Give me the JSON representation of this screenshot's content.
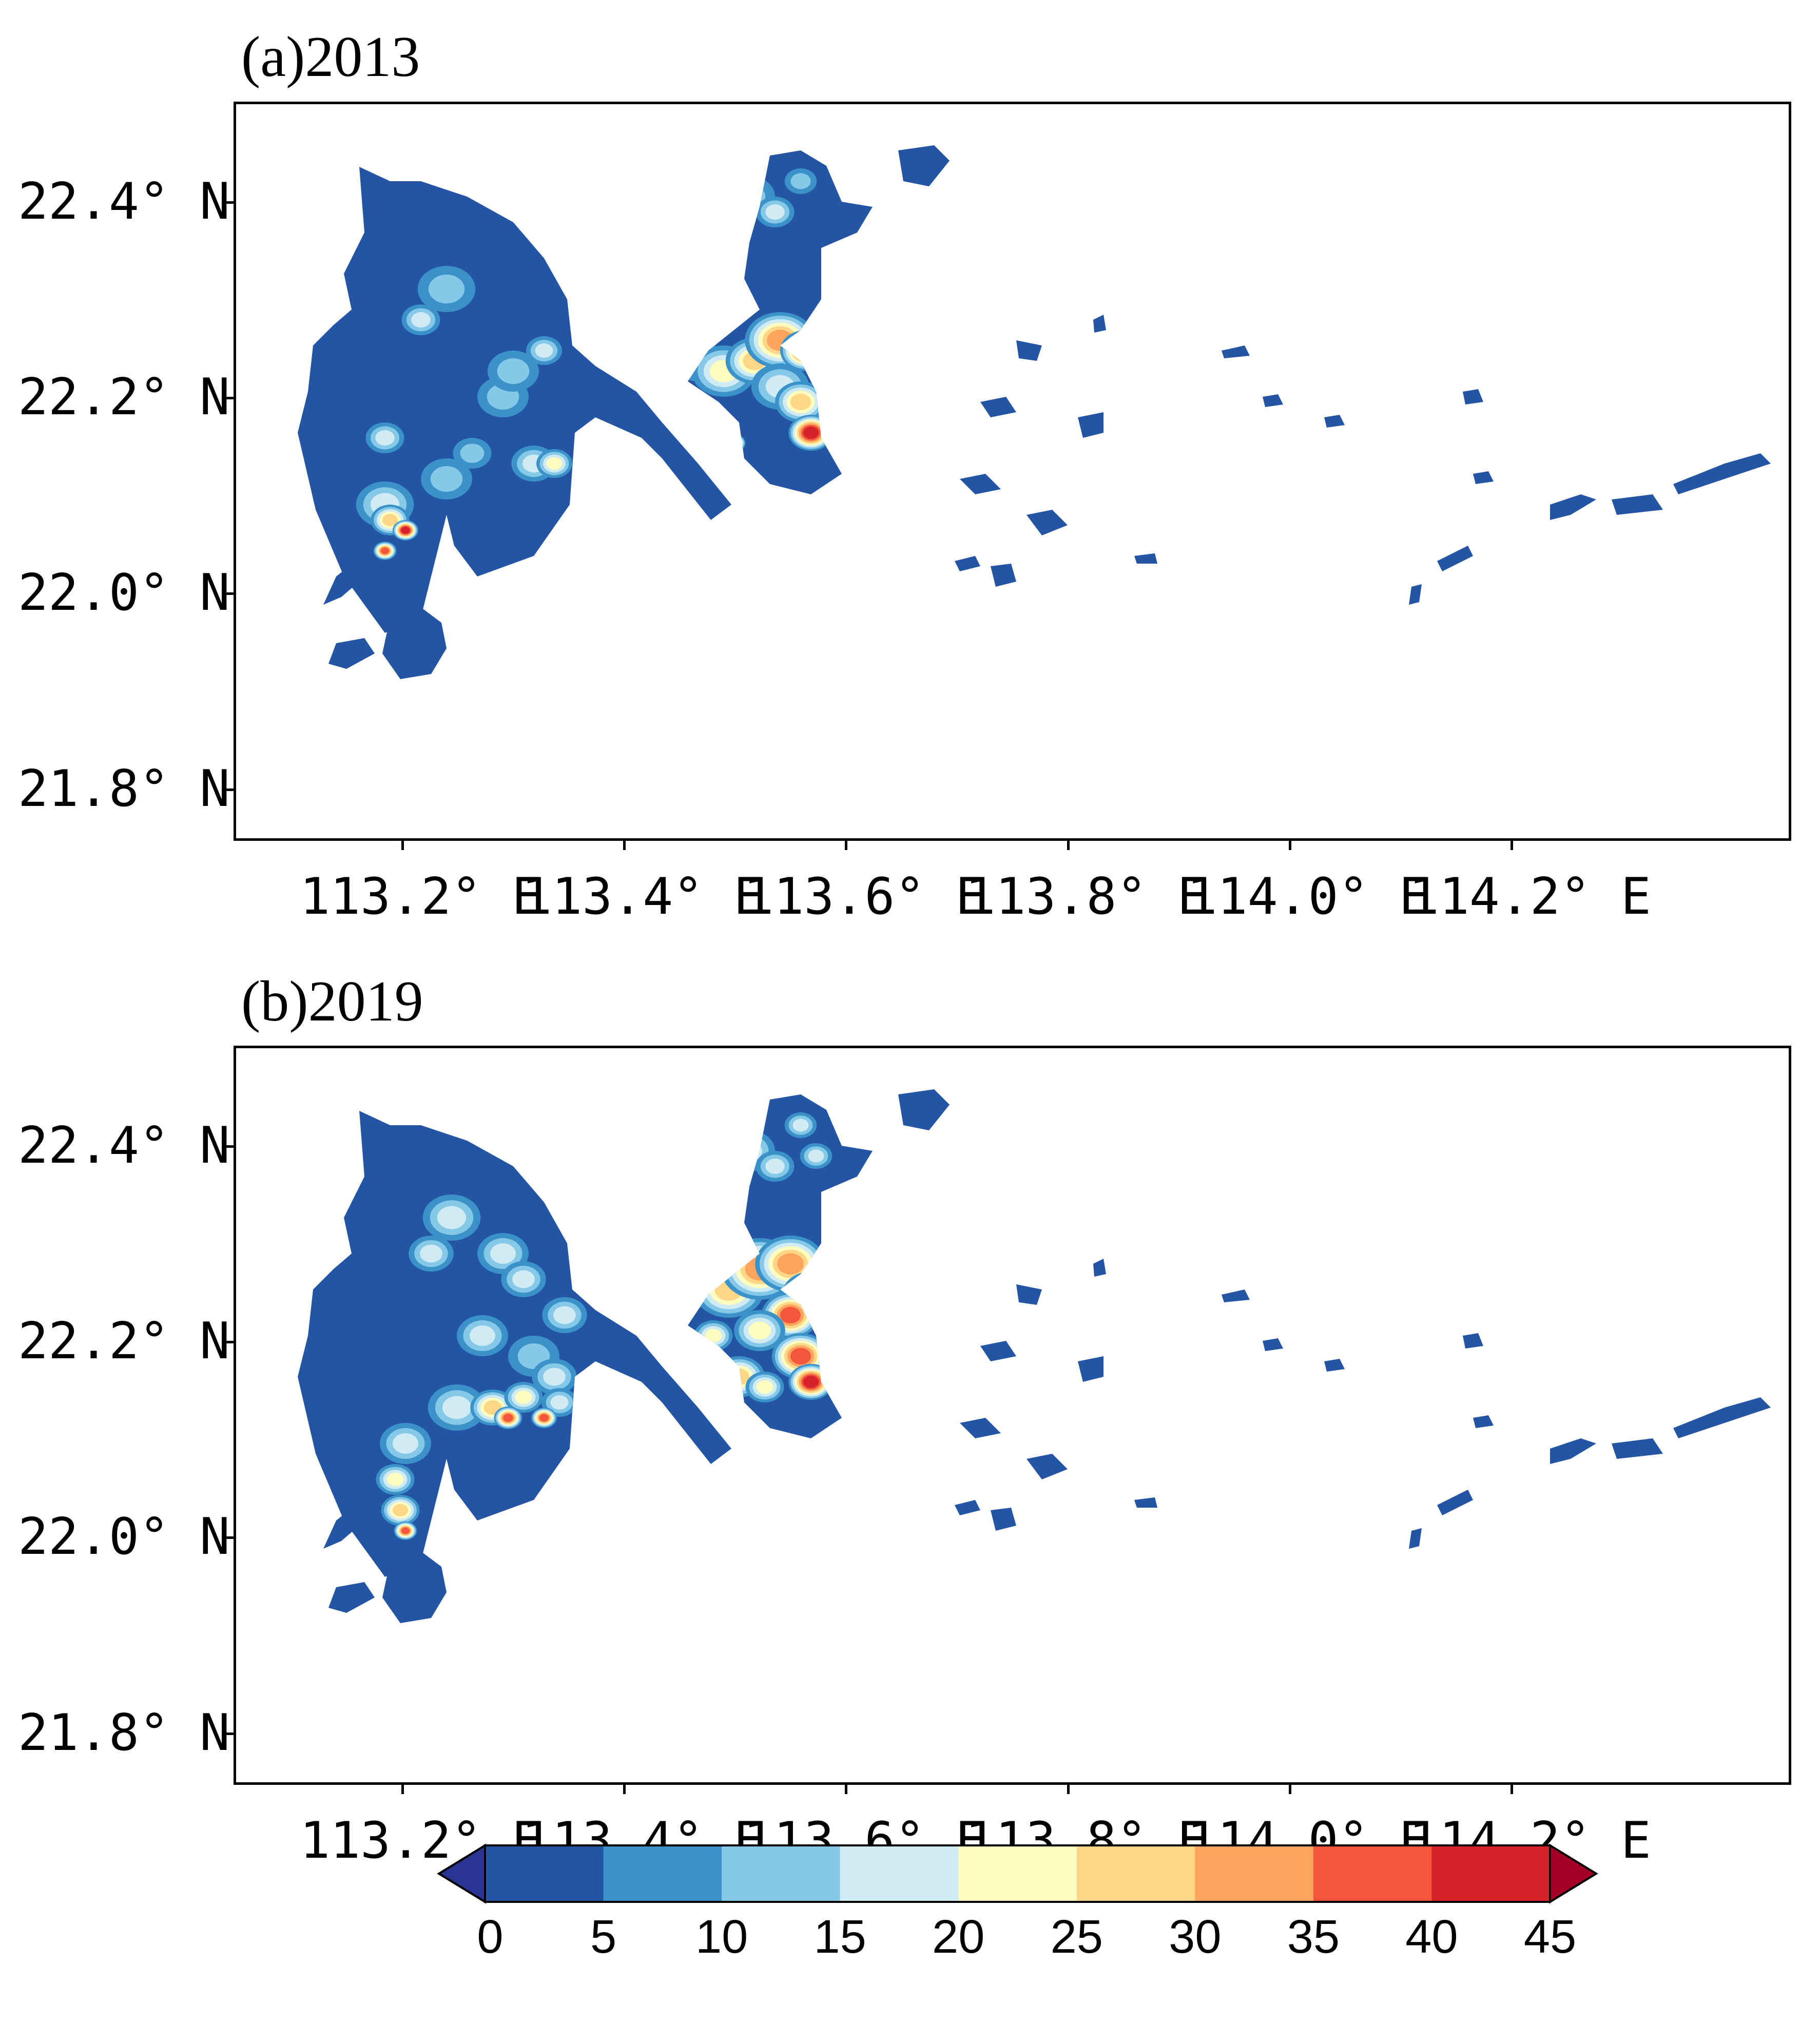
{
  "panels": [
    {
      "label": "(a)",
      "year": "2013"
    },
    {
      "label": "(b)",
      "year": "2019"
    }
  ],
  "y_ticks": [
    "22.4° N",
    "22.2° N",
    "22.0° N",
    "21.8° N"
  ],
  "x_ticks": [
    "113.2° E",
    "113.4° E",
    "113.6° E",
    "113.8° E",
    "114.0° E",
    "114.2° E"
  ],
  "colorbar": {
    "levels": [
      "0",
      "5",
      "10",
      "15",
      "20",
      "25",
      "30",
      "35",
      "40",
      "45"
    ],
    "colors": [
      "#2a3593",
      "#2455a4",
      "#3b92c8",
      "#85c8e8",
      "#d0ebf3",
      "#fdfdc0",
      "#fdd687",
      "#fca35d",
      "#f3563a",
      "#d6222a",
      "#a50026"
    ]
  },
  "chart_data": [
    {
      "type": "heatmap",
      "title": "(a) 2013",
      "xlabel": "",
      "ylabel": "",
      "xlim": [
        113.05,
        114.45
      ],
      "ylim": [
        21.75,
        22.5
      ],
      "x_ticks": [
        113.2,
        113.4,
        113.6,
        113.8,
        114.0,
        114.2
      ],
      "y_ticks": [
        21.8,
        22.0,
        22.2,
        22.4
      ],
      "value_range": [
        0,
        45
      ],
      "hotspots": [
        {
          "lon": 113.54,
          "lat": 22.22,
          "level": "35-40"
        },
        {
          "lon": 113.55,
          "lat": 22.14,
          "level": "40-45"
        },
        {
          "lon": 113.21,
          "lat": 22.0,
          "level": "40-45"
        },
        {
          "lon": 113.45,
          "lat": 22.12,
          "level": "40-45"
        }
      ]
    },
    {
      "type": "heatmap",
      "title": "(b) 2019",
      "xlabel": "",
      "ylabel": "",
      "xlim": [
        113.05,
        114.45
      ],
      "ylim": [
        21.75,
        22.5
      ],
      "x_ticks": [
        113.2,
        113.4,
        113.6,
        113.8,
        114.0,
        114.2
      ],
      "y_ticks": [
        21.8,
        22.0,
        22.2,
        22.4
      ],
      "value_range": [
        0,
        45
      ],
      "hotspots": [
        {
          "lon": 113.53,
          "lat": 22.24,
          "level": "40-45"
        },
        {
          "lon": 113.55,
          "lat": 22.14,
          "level": "40-45"
        },
        {
          "lon": 113.27,
          "lat": 22.02,
          "level": "35-40"
        },
        {
          "lon": 113.23,
          "lat": 21.93,
          "level": "35-40"
        }
      ]
    }
  ]
}
